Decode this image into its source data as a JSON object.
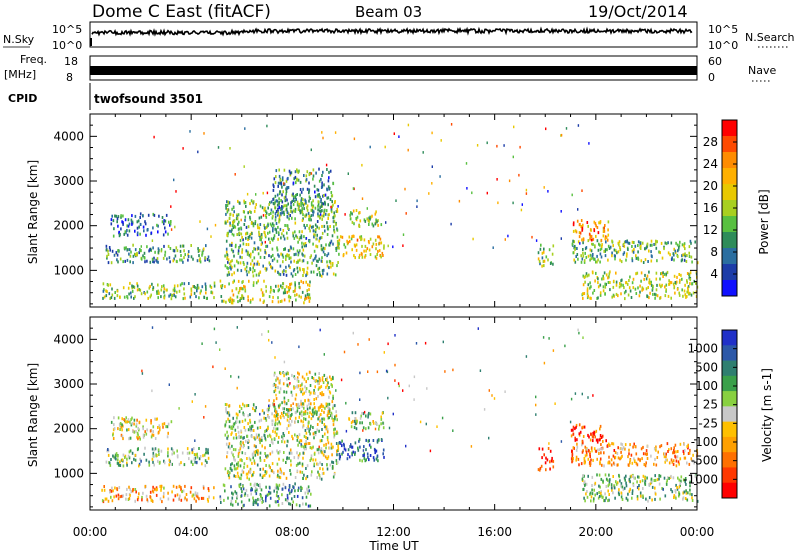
{
  "header": {
    "station": "Dome C East (fitACF)",
    "beam": "Beam 03",
    "date": "19/Oct/2014"
  },
  "strip_labels": {
    "nsky": "N.Sky",
    "nsearch": "N.Search",
    "freq_top": "Freq.",
    "freq_unit": "[MHz]",
    "nave": "Nave",
    "cpid": "CPID",
    "cpid_value": "twofsound 3501",
    "left_ticks_noise": [
      "10^5",
      "10^0"
    ],
    "right_ticks_noise": [
      "10^5",
      "10^0"
    ],
    "left_ticks_freq": [
      "18",
      "8"
    ],
    "right_ticks_nave": [
      "60",
      "0"
    ]
  },
  "colorbars": {
    "power": {
      "label": "Power [dB]",
      "ticks": [
        "28",
        "24",
        "20",
        "16",
        "12",
        "8",
        "4"
      ],
      "colors": [
        "#ff0000",
        "#ff4a00",
        "#ff8c00",
        "#ffb000",
        "#e8c800",
        "#a8d020",
        "#58c040",
        "#2e8c5a",
        "#2a6ea0",
        "#1c3ca8",
        "#1010ff"
      ]
    },
    "velocity": {
      "label": "Velocity [m s-1]",
      "ticks": [
        "1000",
        "500",
        "100",
        "25",
        "-25",
        "-100",
        "-500",
        "-1000"
      ],
      "colors": [
        "#2030c8",
        "#2c58a8",
        "#2f7f70",
        "#3aa04a",
        "#88d040",
        "#c8c8c8",
        "#ffc000",
        "#ffa000",
        "#ff7000",
        "#ff3800",
        "#ff0000"
      ]
    }
  },
  "chart_data": [
    {
      "type": "heatmap",
      "title": "Power",
      "ylabel": "Slant Range [km]",
      "xlabel": "",
      "x_ticks": [
        "00:00",
        "04:00",
        "08:00",
        "12:00",
        "16:00",
        "20:00",
        "00:00"
      ],
      "y_ticks": [
        1000,
        2000,
        3000,
        4000
      ],
      "ylim": [
        180,
        4500
      ],
      "xlim_hours": [
        0,
        24
      ],
      "scatter_regions": [
        {
          "t0": 0.4,
          "t1": 4.9,
          "r0": 400,
          "r1": 750,
          "level": 0.45
        },
        {
          "t0": 0.6,
          "t1": 4.7,
          "r0": 1200,
          "r1": 1600,
          "level": 0.35
        },
        {
          "t0": 0.8,
          "t1": 3.2,
          "r0": 1800,
          "r1": 2300,
          "level": 0.2
        },
        {
          "t0": 5.1,
          "t1": 8.7,
          "r0": 300,
          "r1": 800,
          "level": 0.55
        },
        {
          "t0": 5.3,
          "t1": 9.8,
          "r0": 900,
          "r1": 2600,
          "level": 0.4
        },
        {
          "t0": 7.2,
          "t1": 9.6,
          "r0": 2300,
          "r1": 3300,
          "level": 0.3
        },
        {
          "t0": 9.8,
          "t1": 11.6,
          "r0": 1300,
          "r1": 1800,
          "level": 0.6
        },
        {
          "t0": 10.2,
          "t1": 11.6,
          "r0": 2000,
          "r1": 2400,
          "level": 0.5
        },
        {
          "t0": 17.7,
          "t1": 18.3,
          "r0": 1100,
          "r1": 1600,
          "level": 0.45
        },
        {
          "t0": 19.0,
          "t1": 24.0,
          "r0": 1200,
          "r1": 1700,
          "level": 0.4
        },
        {
          "t0": 19.0,
          "t1": 20.5,
          "r0": 1700,
          "r1": 2150,
          "level": 0.75
        },
        {
          "t0": 19.4,
          "t1": 24.0,
          "r0": 400,
          "r1": 1000,
          "level": 0.5
        }
      ]
    },
    {
      "type": "heatmap",
      "title": "Velocity",
      "ylabel": "Slant Range [km]",
      "xlabel": "Time UT",
      "x_ticks": [
        "00:00",
        "04:00",
        "08:00",
        "12:00",
        "16:00",
        "20:00",
        "00:00"
      ],
      "y_ticks": [
        1000,
        2000,
        3000,
        4000
      ],
      "ylim": [
        180,
        4500
      ],
      "xlim_hours": [
        0,
        24
      ],
      "scatter_regions": [
        {
          "t0": 0.4,
          "t1": 4.9,
          "r0": 400,
          "r1": 750,
          "level": 0.35
        },
        {
          "t0": 0.6,
          "t1": 4.7,
          "r0": 1200,
          "r1": 1600,
          "level": 0.62
        },
        {
          "t0": 0.8,
          "t1": 3.2,
          "r0": 1800,
          "r1": 2300,
          "level": 0.45
        },
        {
          "t0": 5.1,
          "t1": 8.7,
          "r0": 300,
          "r1": 800,
          "level": 0.7
        },
        {
          "t0": 5.3,
          "t1": 9.8,
          "r0": 900,
          "r1": 2600,
          "level": 0.55
        },
        {
          "t0": 7.2,
          "t1": 9.6,
          "r0": 2300,
          "r1": 3300,
          "level": 0.5
        },
        {
          "t0": 9.8,
          "t1": 11.6,
          "r0": 1300,
          "r1": 1800,
          "level": 0.85
        },
        {
          "t0": 10.2,
          "t1": 11.6,
          "r0": 2000,
          "r1": 2400,
          "level": 0.55
        },
        {
          "t0": 17.7,
          "t1": 18.3,
          "r0": 1100,
          "r1": 1600,
          "level": 0.05
        },
        {
          "t0": 19.0,
          "t1": 24.0,
          "r0": 1200,
          "r1": 1700,
          "level": 0.3
        },
        {
          "t0": 19.0,
          "t1": 20.5,
          "r0": 1700,
          "r1": 2150,
          "level": 0.15
        },
        {
          "t0": 19.4,
          "t1": 24.0,
          "r0": 400,
          "r1": 1000,
          "level": 0.6
        }
      ]
    }
  ]
}
